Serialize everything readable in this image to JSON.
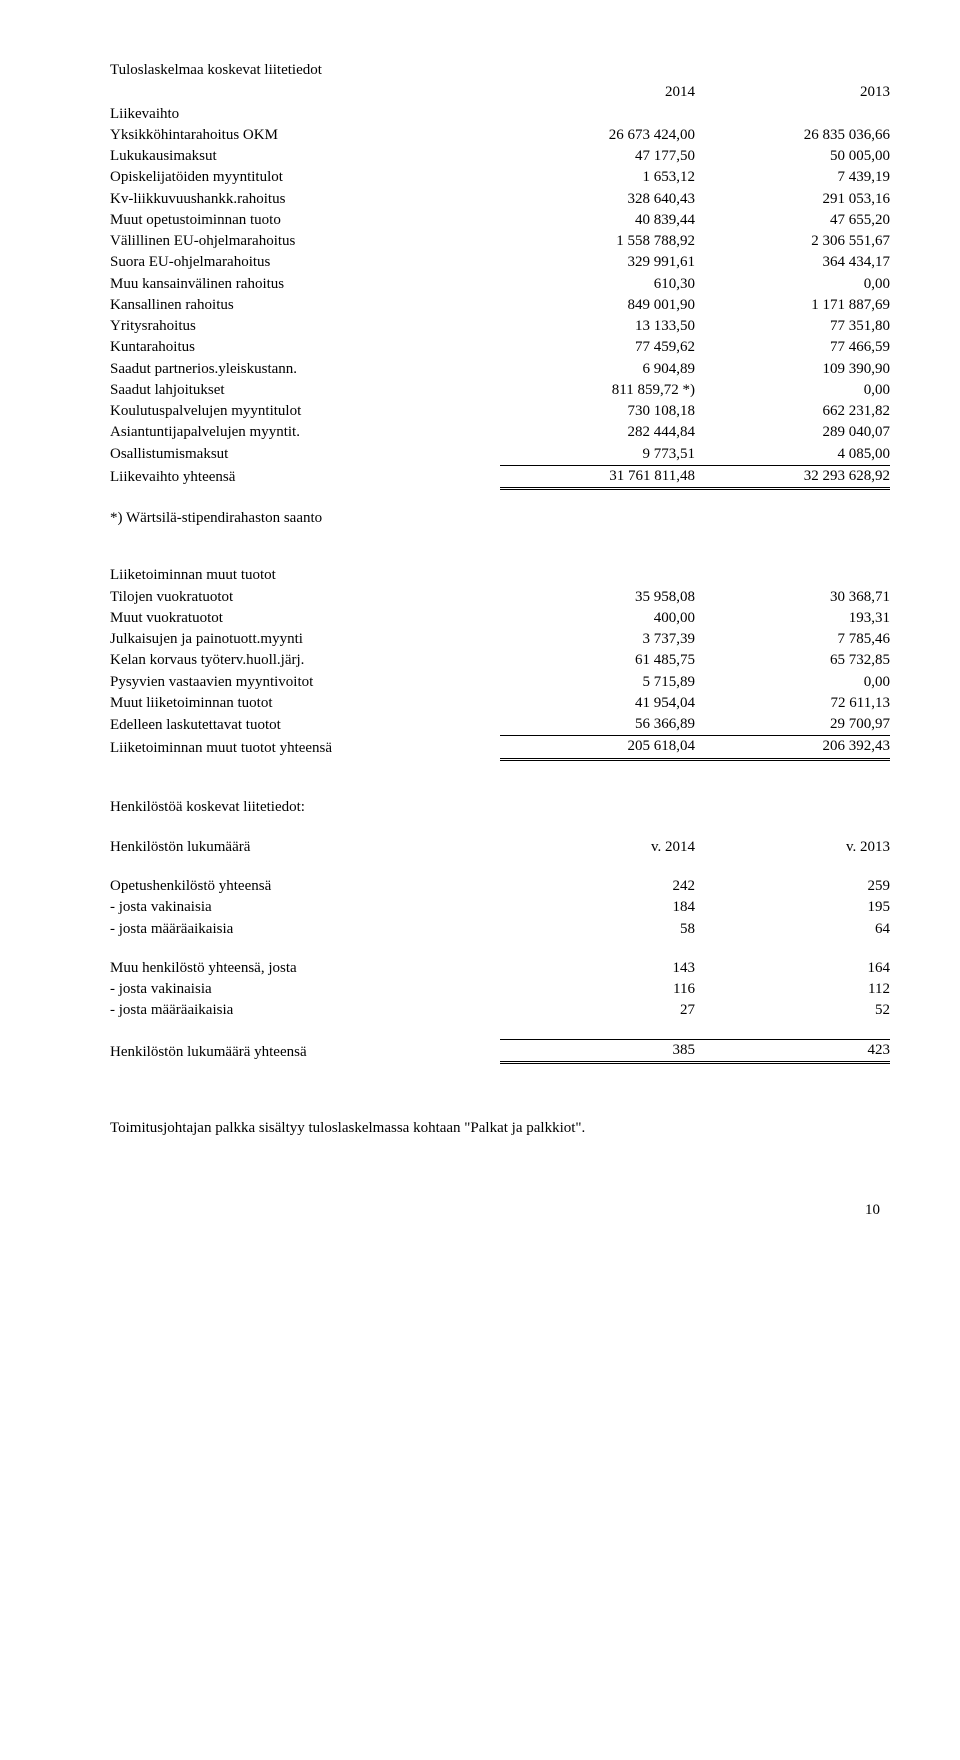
{
  "page_number": "10",
  "footnote_text": "*) Wärtsilä-stipendirahaston saanto",
  "footer_line": "Toimitusjohtajan palkka sisältyy tuloslaskelmassa kohtaan \"Palkat ja palkkiot\".",
  "sec1": {
    "title": "Tuloslaskelmaa koskevat liitetiedot",
    "year1": "2014",
    "year2": "2013",
    "heading_row": "Liikevaihto",
    "rows": [
      {
        "label": "Yksikköhintarahoitus OKM",
        "v1": "26 673 424,00",
        "v2": "26 835 036,66"
      },
      {
        "label": "Lukukausimaksut",
        "v1": "47 177,50",
        "v2": "50 005,00"
      },
      {
        "label": "Opiskelijatöiden myyntitulot",
        "v1": "1 653,12",
        "v2": "7 439,19"
      },
      {
        "label": "Kv-liikkuvuushankk.rahoitus",
        "v1": "328 640,43",
        "v2": "291 053,16"
      },
      {
        "label": "Muut opetustoiminnan tuoto",
        "v1": "40 839,44",
        "v2": "47 655,20"
      },
      {
        "label": "Välillinen EU-ohjelmarahoitus",
        "v1": "1 558 788,92",
        "v2": "2 306 551,67"
      },
      {
        "label": "Suora EU-ohjelmarahoitus",
        "v1": "329 991,61",
        "v2": "364 434,17"
      },
      {
        "label": "Muu kansainvälinen rahoitus",
        "v1": "610,30",
        "v2": "0,00"
      },
      {
        "label": "Kansallinen rahoitus",
        "v1": "849 001,90",
        "v2": "1 171 887,69"
      },
      {
        "label": "Yritysrahoitus",
        "v1": "13 133,50",
        "v2": "77 351,80"
      },
      {
        "label": "Kuntarahoitus",
        "v1": "77 459,62",
        "v2": "77 466,59"
      },
      {
        "label": "Saadut partnerios.yleiskustann.",
        "v1": "6 904,89",
        "v2": "109 390,90"
      },
      {
        "label": "Saadut lahjoitukset",
        "v1": "811 859,72 *)",
        "v2": "0,00"
      },
      {
        "label": "Koulutuspalvelujen myyntitulot",
        "v1": "730 108,18",
        "v2": "662 231,82"
      },
      {
        "label": "Asiantuntijapalvelujen myyntit.",
        "v1": "282 444,84",
        "v2": "289 040,07"
      },
      {
        "label": "Osallistumismaksut",
        "v1": "9 773,51",
        "v2": "4 085,00"
      }
    ],
    "total": {
      "label": "Liikevaihto yhteensä",
      "v1": "31 761 811,48",
      "v2": "32 293 628,92"
    }
  },
  "sec2": {
    "heading_row": "Liiketoiminnan muut tuotot",
    "rows": [
      {
        "label": "Tilojen vuokratuotot",
        "v1": "35 958,08",
        "v2": "30 368,71"
      },
      {
        "label": "Muut vuokratuotot",
        "v1": "400,00",
        "v2": "193,31"
      },
      {
        "label": "Julkaisujen ja painotuott.myynti",
        "v1": "3 737,39",
        "v2": "7 785,46"
      },
      {
        "label": "Kelan korvaus työterv.huoll.järj.",
        "v1": "61 485,75",
        "v2": "65 732,85"
      },
      {
        "label": "Pysyvien vastaavien myyntivoitot",
        "v1": "5 715,89",
        "v2": "0,00"
      },
      {
        "label": "Muut liiketoiminnan tuotot",
        "v1": "41 954,04",
        "v2": "72 611,13"
      },
      {
        "label": "Edelleen laskutettavat tuotot",
        "v1": "56 366,89",
        "v2": "29 700,97"
      }
    ],
    "total": {
      "label": "Liiketoiminnan muut tuotot yhteensä",
      "v1": "205 618,04",
      "v2": "206 392,43"
    }
  },
  "sec3": {
    "title": "Henkilöstöä koskevat liitetiedot:",
    "header": {
      "label": "Henkilöstön lukumäärä",
      "v1": "v. 2014",
      "v2": "v. 2013"
    },
    "group1": [
      {
        "label": "Opetushenkilöstö yhteensä",
        "v1": "242",
        "v2": "259"
      },
      {
        "label": "- josta vakinaisia",
        "v1": "184",
        "v2": "195"
      },
      {
        "label": "- josta määräaikaisia",
        "v1": "58",
        "v2": "64"
      }
    ],
    "group2": [
      {
        "label": "Muu henkilöstö yhteensä, josta",
        "v1": "143",
        "v2": "164"
      },
      {
        "label": "- josta  vakinaisia",
        "v1": "116",
        "v2": "112"
      },
      {
        "label": "- josta määräaikaisia",
        "v1": "27",
        "v2": "52"
      }
    ],
    "total": {
      "label": "Henkilöstön lukumäärä yhteensä",
      "v1": "385",
      "v2": "423"
    }
  }
}
